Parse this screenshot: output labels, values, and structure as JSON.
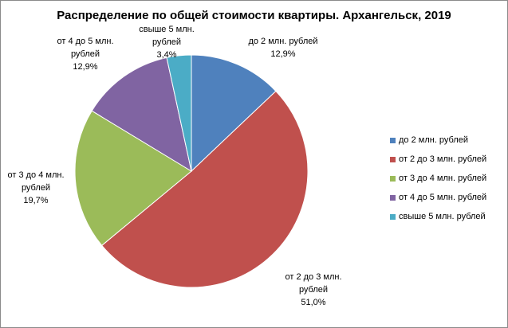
{
  "chart_data": {
    "type": "pie",
    "title": "Распределение по общей стоимости квартиры. Архангельск, 2019",
    "legend_position": "right",
    "slices": [
      {
        "name": "до 2 млн. рублей",
        "label_lines": [
          "до 2 млн. рублей"
        ],
        "value_text": "12,9%",
        "value": 12.9,
        "color": "#4f81bd"
      },
      {
        "name": "от 2 до 3 млн. рублей",
        "label_lines": [
          "от 2 до 3 млн.",
          "рублей"
        ],
        "value_text": "51,0%",
        "value": 51.0,
        "color": "#c0504d"
      },
      {
        "name": "от 3 до 4 млн. рублей",
        "label_lines": [
          "от 3 до 4 млн.",
          "рублей"
        ],
        "value_text": "19,7%",
        "value": 19.7,
        "color": "#9bbb59"
      },
      {
        "name": "от 4 до 5 млн. рублей",
        "label_lines": [
          "от 4 до 5 млн.",
          "рублей"
        ],
        "value_text": "12,9%",
        "value": 12.9,
        "color": "#8064a2"
      },
      {
        "name": "свыше 5 млн. рублей",
        "label_lines": [
          "свыше 5 млн.",
          "рублей"
        ],
        "value_text": "3,4%",
        "value": 3.4,
        "color": "#4bacc6"
      }
    ]
  }
}
